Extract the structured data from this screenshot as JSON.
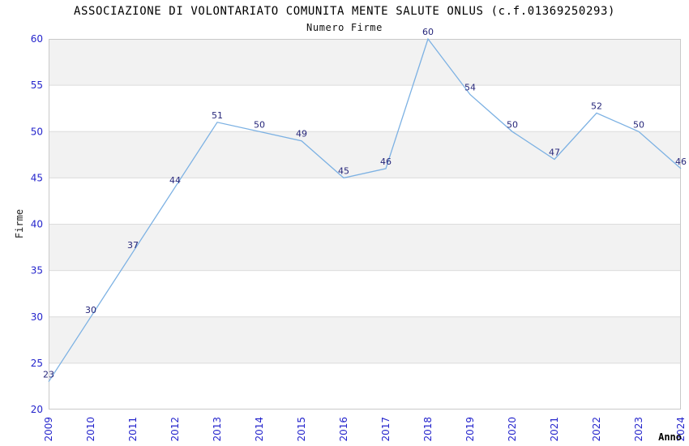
{
  "chart_data": {
    "type": "line",
    "title": "ASSOCIAZIONE DI VOLONTARIATO COMUNITA MENTE SALUTE ONLUS (c.f.01369250293)",
    "subtitle": "Numero Firme",
    "xlabel": "Anno",
    "ylabel": "Firme",
    "x": [
      2009,
      2010,
      2011,
      2012,
      2013,
      2014,
      2015,
      2016,
      2017,
      2018,
      2019,
      2020,
      2021,
      2022,
      2023,
      2024
    ],
    "values": [
      23,
      30,
      37,
      44,
      51,
      50,
      49,
      45,
      46,
      60,
      54,
      50,
      47,
      52,
      50,
      46
    ],
    "ylim": [
      20,
      60
    ],
    "ytick_step": 5,
    "yticks": [
      20,
      25,
      30,
      35,
      40,
      45,
      50,
      55,
      60
    ],
    "x_tick_rotation": -90,
    "grid": "horizontal-bands-alternating",
    "legend": "none",
    "colors": {
      "line": "#7cb1e3",
      "data_label": "#26267a",
      "tick_label": "#2424cc",
      "band": "#f2f2f2",
      "gridline": "#dcdcdc",
      "plot_border": "#c9c9c9",
      "background": "#ffffff"
    }
  }
}
